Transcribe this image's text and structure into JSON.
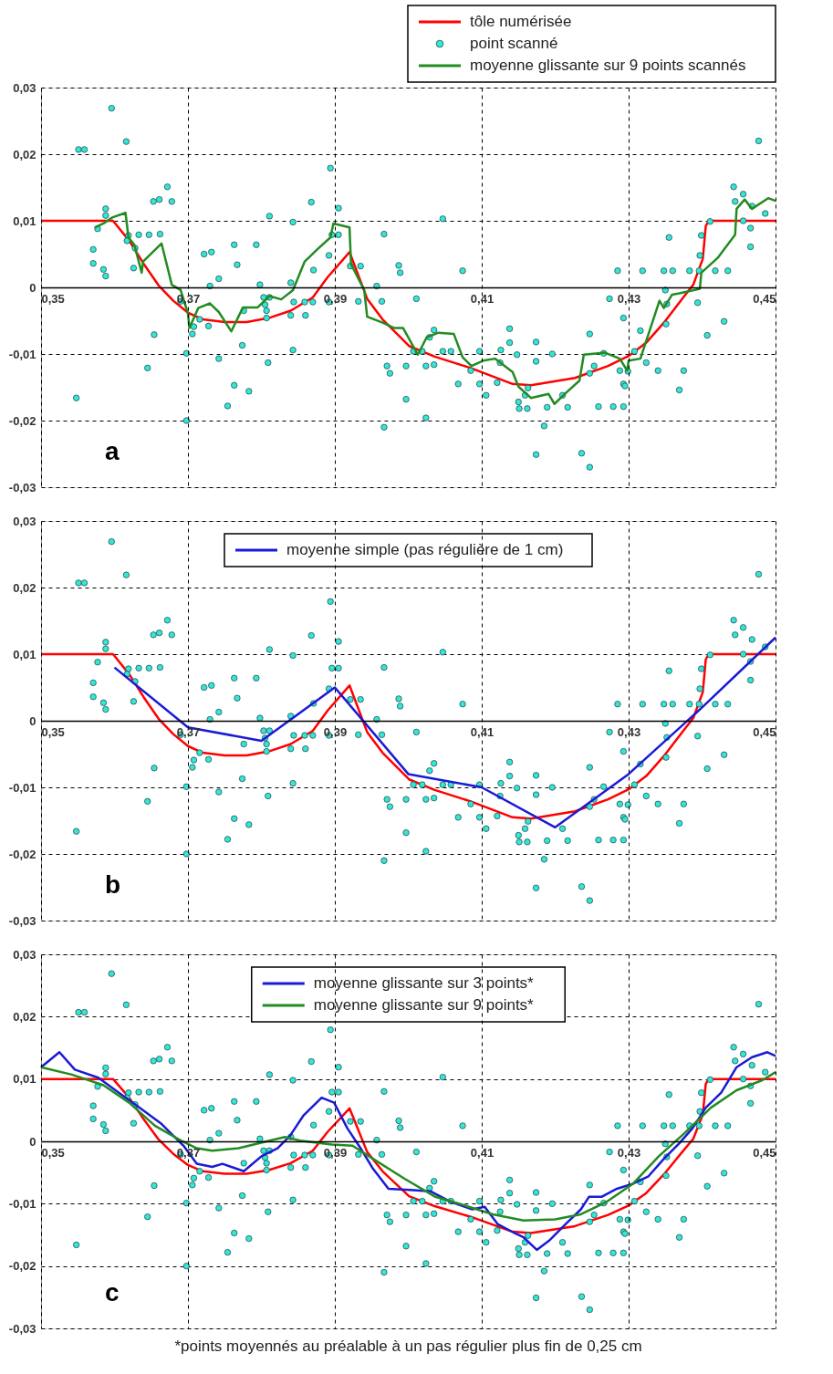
{
  "chart_data": [
    {
      "type": "line",
      "xlim": [
        0.35,
        0.45
      ],
      "ylim": [
        -0.03,
        0.03
      ],
      "grid": true,
      "legend": "top right",
      "line_style": "solid",
      "xticks": [
        {
          "value": 0.35,
          "label": "0,35"
        },
        {
          "value": 0.37,
          "label": "0,37"
        },
        {
          "value": 0.39,
          "label": "0,39"
        },
        {
          "value": 0.41,
          "label": "0,41"
        },
        {
          "value": 0.43,
          "label": "0,43"
        },
        {
          "value": 0.45,
          "label": "0,45"
        }
      ],
      "yticks": [
        {
          "value": 0.03,
          "label": "0,03"
        },
        {
          "value": 0.02,
          "label": "0,02"
        },
        {
          "value": 0.01,
          "label": "0,01"
        },
        {
          "value": 0,
          "label": "0"
        },
        {
          "value": -0.01,
          "label": "-0,01"
        },
        {
          "value": -0.02,
          "label": "-0,02"
        },
        {
          "value": -0.03,
          "label": "-0,03"
        }
      ],
      "annotations": [
        "a"
      ],
      "series": [
        {
          "name": "tôle numérisée",
          "type": "line",
          "color": "#ff0000",
          "x": [
            0.35,
            0.3598,
            0.362,
            0.364,
            0.366,
            0.368,
            0.37,
            0.372,
            0.375,
            0.378,
            0.381,
            0.384,
            0.387,
            0.389,
            0.392,
            0.3944,
            0.3965,
            0.4001,
            0.4036,
            0.4085,
            0.4142,
            0.4167,
            0.4227,
            0.4272,
            0.43,
            0.4324,
            0.4348,
            0.4373,
            0.4388,
            0.4401,
            0.4405,
            0.4409,
            0.45
          ],
          "values": [
            0.01,
            0.01,
            0.007,
            0.0035,
            0.0003,
            -0.002,
            -0.0038,
            -0.0048,
            -0.0052,
            -0.0052,
            -0.0046,
            -0.0035,
            -0.0015,
            0.0015,
            0.0053,
            -0.0017,
            -0.0048,
            -0.0088,
            -0.0104,
            -0.0121,
            -0.0145,
            -0.0147,
            -0.0136,
            -0.0118,
            -0.0103,
            -0.0083,
            -0.0053,
            -0.0017,
            0.0004,
            0.0043,
            0.0092,
            0.01,
            0.01
          ]
        },
        {
          "name": "point scanné",
          "type": "scatter",
          "marker": "circle",
          "color": "#33e6d6",
          "x": [
            0.3596,
            0.3551,
            0.3559,
            0.3616,
            0.3672,
            0.3653,
            0.3661,
            0.3678,
            0.3588,
            0.3588,
            0.3577,
            0.3619,
            0.3633,
            0.3647,
            0.3662,
            0.3571,
            0.3571,
            0.3585,
            0.3588,
            0.3617,
            0.3628,
            0.3626,
            0.369,
            0.3708,
            0.3716,
            0.3706,
            0.3728,
            0.3654,
            0.3645,
            0.3698,
            0.3742,
            0.3548,
            0.3698,
            0.3763,
            0.3783,
            0.3754,
            0.3774,
            0.3809,
            0.3722,
            0.3732,
            0.3763,
            0.3793,
            0.3767,
            0.3742,
            0.373,
            0.3798,
            0.3811,
            0.3776,
            0.3803,
            0.3805,
            0.3807,
            0.3807,
            0.3811,
            0.3894,
            0.3868,
            0.3905,
            0.3843,
            0.4047,
            0.3896,
            0.3905,
            0.3967,
            0.3892,
            0.3871,
            0.3921,
            0.3935,
            0.3987,
            0.3989,
            0.4074,
            0.384,
            0.3957,
            0.4011,
            0.3844,
            0.3859,
            0.387,
            0.3892,
            0.3932,
            0.3964,
            0.384,
            0.386,
            0.3843,
            0.4035,
            0.4029,
            0.4007,
            0.4019,
            0.4047,
            0.4058,
            0.3971,
            0.3975,
            0.3997,
            0.4024,
            0.4035,
            0.3997,
            0.4024,
            0.3967,
            0.4068,
            0.4085,
            0.4097,
            0.4106,
            0.4121,
            0.4126,
            0.4125,
            0.4138,
            0.4138,
            0.4148,
            0.4174,
            0.4174,
            0.415,
            0.4151,
            0.4162,
            0.4159,
            0.4163,
            0.4174,
            0.4097,
            0.4477,
            0.4443,
            0.4456,
            0.4445,
            0.4468,
            0.4486,
            0.4456,
            0.4466,
            0.4466,
            0.4411,
            0.4355,
            0.4399,
            0.4397,
            0.4285,
            0.4319,
            0.4348,
            0.436,
            0.4383,
            0.4396,
            0.4418,
            0.4435,
            0.435,
            0.4274,
            0.4352,
            0.4394,
            0.4293,
            0.443,
            0.4351,
            0.4316,
            0.4407,
            0.4247,
            0.4196,
            0.4266,
            0.4308,
            0.4324,
            0.434,
            0.4375,
            0.4247,
            0.4253,
            0.4288,
            0.4299,
            0.4293,
            0.4295,
            0.4369,
            0.421,
            0.4189,
            0.4217,
            0.4259,
            0.4279,
            0.4293,
            0.4185,
            0.4236,
            0.4247
          ],
          "values": [
            0.0269,
            0.0207,
            0.0207,
            0.0219,
            0.0151,
            0.0129,
            0.0132,
            0.0129,
            0.0118,
            0.0108,
            0.0088,
            0.0078,
            0.0079,
            0.0079,
            0.008,
            0.0057,
            0.0036,
            0.0027,
            0.0017,
            0.007,
            0.0059,
            0.0029,
            -0.0021,
            -0.0059,
            -0.0048,
            -0.007,
            -0.0058,
            -0.0071,
            -0.0121,
            -0.0099,
            -0.0107,
            -0.0166,
            -0.02,
            -0.0147,
            -0.0156,
            -0.0178,
            -0.0087,
            -0.0113,
            0.005,
            0.0053,
            0.0064,
            0.0064,
            0.0034,
            0.0013,
            0.0002,
            0.0004,
            0.0107,
            -0.0035,
            -0.0015,
            -0.0026,
            -0.0035,
            -0.0046,
            -0.0015,
            0.0179,
            0.0128,
            0.0119,
            0.0098,
            0.0103,
            0.0079,
            0.0079,
            0.008,
            0.0048,
            0.0026,
            0.0032,
            0.0032,
            0.0033,
            0.0022,
            0.0025,
            0.0007,
            0.0002,
            -0.0017,
            -0.0022,
            -0.0022,
            -0.0022,
            -0.0022,
            -0.0021,
            -0.0021,
            -0.0042,
            -0.0042,
            -0.0094,
            -0.0064,
            -0.0075,
            -0.0096,
            -0.0096,
            -0.0096,
            -0.0096,
            -0.0118,
            -0.0129,
            -0.0118,
            -0.0118,
            -0.0116,
            -0.0168,
            -0.0196,
            -0.021,
            -0.0145,
            -0.0125,
            -0.0145,
            -0.0162,
            -0.0143,
            -0.0094,
            -0.0113,
            -0.0062,
            -0.0083,
            -0.0101,
            -0.0082,
            -0.0111,
            -0.0172,
            -0.0182,
            -0.0182,
            -0.0162,
            -0.0151,
            -0.0251,
            -0.0096,
            0.022,
            0.0151,
            0.014,
            0.0129,
            0.0122,
            0.0111,
            0.01,
            0.0089,
            0.0061,
            0.0099,
            0.0075,
            0.0078,
            0.0048,
            0.0025,
            0.0025,
            0.0025,
            0.0025,
            0.0025,
            0.0025,
            0.0025,
            0.0025,
            -0.0004,
            -0.0017,
            -0.0025,
            -0.0023,
            -0.0046,
            -0.0051,
            -0.0055,
            -0.0065,
            -0.0072,
            -0.007,
            -0.01,
            -0.0099,
            -0.0096,
            -0.0113,
            -0.0125,
            -0.0125,
            -0.0129,
            -0.0118,
            -0.0125,
            -0.0126,
            -0.0145,
            -0.0148,
            -0.0154,
            -0.0162,
            -0.018,
            -0.018,
            -0.0179,
            -0.0179,
            -0.0179,
            -0.0208,
            -0.0249,
            -0.027
          ]
        },
        {
          "name": "moyenne glissante sur 9 points scannés",
          "type": "line",
          "color": "#228b22",
          "x": [
            0.3573,
            0.3585,
            0.3597,
            0.3615,
            0.3619,
            0.3627,
            0.3637,
            0.3639,
            0.3664,
            0.3678,
            0.369,
            0.37,
            0.3702,
            0.3714,
            0.373,
            0.3742,
            0.3759,
            0.3775,
            0.3795,
            0.3811,
            0.3827,
            0.3843,
            0.3859,
            0.3876,
            0.3894,
            0.3898,
            0.392,
            0.3922,
            0.394,
            0.3944,
            0.3965,
            0.3981,
            0.3993,
            0.4013,
            0.4025,
            0.4041,
            0.4062,
            0.4074,
            0.4086,
            0.4102,
            0.4118,
            0.4142,
            0.415,
            0.4167,
            0.4191,
            0.4199,
            0.4215,
            0.4233,
            0.4239,
            0.4268,
            0.4288,
            0.4298,
            0.43,
            0.4316,
            0.4342,
            0.4348,
            0.4359,
            0.4369,
            0.4397,
            0.4399,
            0.4421,
            0.4445,
            0.4447,
            0.4458,
            0.4468,
            0.449,
            0.45
          ],
          "values": [
            0.009,
            0.0096,
            0.0105,
            0.0112,
            0.0075,
            0.0064,
            0.0022,
            0.0039,
            0.0066,
            0.0004,
            -0.0004,
            -0.0039,
            -0.0061,
            -0.0031,
            -0.0024,
            -0.0037,
            -0.0066,
            -0.003,
            -0.003,
            -0.0013,
            -0.0018,
            -0.0004,
            0.0039,
            0.0057,
            0.0075,
            0.0096,
            0.009,
            0.0035,
            -0.0004,
            -0.0044,
            -0.0053,
            -0.0061,
            -0.0061,
            -0.0101,
            -0.0075,
            -0.0068,
            -0.007,
            -0.0105,
            -0.0118,
            -0.011,
            -0.0107,
            -0.0127,
            -0.0149,
            -0.0166,
            -0.016,
            -0.0175,
            -0.0158,
            -0.014,
            -0.0101,
            -0.0098,
            -0.0107,
            -0.0125,
            -0.011,
            -0.0107,
            -0.002,
            -0.0031,
            -0.0011,
            -0.0009,
            -0.0002,
            0.0022,
            0.0044,
            0.0079,
            0.0118,
            0.0132,
            0.0118,
            0.0134,
            0.013
          ]
        }
      ]
    },
    {
      "type": "line",
      "xlim": [
        0.35,
        0.45
      ],
      "ylim": [
        -0.03,
        0.03
      ],
      "grid": true,
      "legend": "top",
      "line_style": "solid",
      "xticks": [
        {
          "value": 0.35,
          "label": "0,35"
        },
        {
          "value": 0.37,
          "label": "0,37"
        },
        {
          "value": 0.39,
          "label": "0,39"
        },
        {
          "value": 0.41,
          "label": "0,41"
        },
        {
          "value": 0.43,
          "label": "0,43"
        },
        {
          "value": 0.45,
          "label": "0,45"
        }
      ],
      "yticks": [
        {
          "value": 0.03,
          "label": "0,03"
        },
        {
          "value": 0.02,
          "label": "0,02"
        },
        {
          "value": 0.01,
          "label": "0,01"
        },
        {
          "value": 0,
          "label": "0"
        },
        {
          "value": -0.01,
          "label": "-0,01"
        },
        {
          "value": -0.02,
          "label": "-0,02"
        },
        {
          "value": -0.03,
          "label": "-0,03"
        }
      ],
      "annotations": [
        "b"
      ],
      "series": [
        {
          "type": "line",
          "color": "#ff0000",
          "x": [
            0.35,
            0.3598,
            0.362,
            0.364,
            0.366,
            0.368,
            0.37,
            0.372,
            0.375,
            0.378,
            0.381,
            0.384,
            0.387,
            0.389,
            0.392,
            0.3944,
            0.3965,
            0.4001,
            0.4036,
            0.4085,
            0.4142,
            0.4167,
            0.4227,
            0.4272,
            0.43,
            0.4324,
            0.4348,
            0.4373,
            0.4388,
            0.4401,
            0.4405,
            0.4409,
            0.45
          ],
          "values": [
            0.01,
            0.01,
            0.007,
            0.0035,
            0.0003,
            -0.002,
            -0.0038,
            -0.0048,
            -0.0052,
            -0.0052,
            -0.0046,
            -0.0035,
            -0.0015,
            0.0015,
            0.0053,
            -0.0017,
            -0.0048,
            -0.0088,
            -0.0104,
            -0.0121,
            -0.0145,
            -0.0147,
            -0.0136,
            -0.0118,
            -0.0103,
            -0.0083,
            -0.0053,
            -0.0017,
            0.0004,
            0.0043,
            0.0092,
            0.01,
            0.01
          ]
        },
        {
          "type": "scatter",
          "marker": "circle",
          "color": "#33e6d6",
          "x": [
            0.3596,
            0.3551,
            0.3559,
            0.3616,
            0.3672,
            0.3653,
            0.3661,
            0.3678,
            0.3588,
            0.3588,
            0.3577,
            0.3619,
            0.3633,
            0.3647,
            0.3662,
            0.3571,
            0.3571,
            0.3585,
            0.3588,
            0.3617,
            0.3628,
            0.3626,
            0.369,
            0.3708,
            0.3716,
            0.3706,
            0.3728,
            0.3654,
            0.3645,
            0.3698,
            0.3742,
            0.3548,
            0.3698,
            0.3763,
            0.3783,
            0.3754,
            0.3774,
            0.3809,
            0.3722,
            0.3732,
            0.3763,
            0.3793,
            0.3767,
            0.3742,
            0.373,
            0.3798,
            0.3811,
            0.3776,
            0.3803,
            0.3805,
            0.3807,
            0.3807,
            0.3811,
            0.3894,
            0.3868,
            0.3905,
            0.3843,
            0.4047,
            0.3896,
            0.3905,
            0.3967,
            0.3892,
            0.3871,
            0.3921,
            0.3935,
            0.3987,
            0.3989,
            0.4074,
            0.384,
            0.3957,
            0.4011,
            0.3844,
            0.3859,
            0.387,
            0.3892,
            0.3932,
            0.3964,
            0.384,
            0.386,
            0.3843,
            0.4035,
            0.4029,
            0.4007,
            0.4019,
            0.4047,
            0.4058,
            0.3971,
            0.3975,
            0.3997,
            0.4024,
            0.4035,
            0.3997,
            0.4024,
            0.3967,
            0.4068,
            0.4085,
            0.4097,
            0.4106,
            0.4121,
            0.4126,
            0.4125,
            0.4138,
            0.4138,
            0.4148,
            0.4174,
            0.4174,
            0.415,
            0.4151,
            0.4162,
            0.4159,
            0.4163,
            0.4174,
            0.4097,
            0.4477,
            0.4443,
            0.4456,
            0.4445,
            0.4468,
            0.4486,
            0.4456,
            0.4466,
            0.4466,
            0.4411,
            0.4355,
            0.4399,
            0.4397,
            0.4285,
            0.4319,
            0.4348,
            0.436,
            0.4383,
            0.4396,
            0.4418,
            0.4435,
            0.435,
            0.4274,
            0.4352,
            0.4394,
            0.4293,
            0.443,
            0.4351,
            0.4316,
            0.4407,
            0.4247,
            0.4196,
            0.4266,
            0.4308,
            0.4324,
            0.434,
            0.4375,
            0.4247,
            0.4253,
            0.4288,
            0.4299,
            0.4293,
            0.4295,
            0.4369,
            0.421,
            0.4189,
            0.4217,
            0.4259,
            0.4279,
            0.4293,
            0.4185,
            0.4236,
            0.4247
          ],
          "values": [
            0.0269,
            0.0207,
            0.0207,
            0.0219,
            0.0151,
            0.0129,
            0.0132,
            0.0129,
            0.0118,
            0.0108,
            0.0088,
            0.0078,
            0.0079,
            0.0079,
            0.008,
            0.0057,
            0.0036,
            0.0027,
            0.0017,
            0.007,
            0.0059,
            0.0029,
            -0.0021,
            -0.0059,
            -0.0048,
            -0.007,
            -0.0058,
            -0.0071,
            -0.0121,
            -0.0099,
            -0.0107,
            -0.0166,
            -0.02,
            -0.0147,
            -0.0156,
            -0.0178,
            -0.0087,
            -0.0113,
            0.005,
            0.0053,
            0.0064,
            0.0064,
            0.0034,
            0.0013,
            0.0002,
            0.0004,
            0.0107,
            -0.0035,
            -0.0015,
            -0.0026,
            -0.0035,
            -0.0046,
            -0.0015,
            0.0179,
            0.0128,
            0.0119,
            0.0098,
            0.0103,
            0.0079,
            0.0079,
            0.008,
            0.0048,
            0.0026,
            0.0032,
            0.0032,
            0.0033,
            0.0022,
            0.0025,
            0.0007,
            0.0002,
            -0.0017,
            -0.0022,
            -0.0022,
            -0.0022,
            -0.0022,
            -0.0021,
            -0.0021,
            -0.0042,
            -0.0042,
            -0.0094,
            -0.0064,
            -0.0075,
            -0.0096,
            -0.0096,
            -0.0096,
            -0.0096,
            -0.0118,
            -0.0129,
            -0.0118,
            -0.0118,
            -0.0116,
            -0.0168,
            -0.0196,
            -0.021,
            -0.0145,
            -0.0125,
            -0.0145,
            -0.0162,
            -0.0143,
            -0.0094,
            -0.0113,
            -0.0062,
            -0.0083,
            -0.0101,
            -0.0082,
            -0.0111,
            -0.0172,
            -0.0182,
            -0.0182,
            -0.0162,
            -0.0151,
            -0.0251,
            -0.0096,
            0.022,
            0.0151,
            0.014,
            0.0129,
            0.0122,
            0.0111,
            0.01,
            0.0089,
            0.0061,
            0.0099,
            0.0075,
            0.0078,
            0.0048,
            0.0025,
            0.0025,
            0.0025,
            0.0025,
            0.0025,
            0.0025,
            0.0025,
            0.0025,
            -0.0004,
            -0.0017,
            -0.0025,
            -0.0023,
            -0.0046,
            -0.0051,
            -0.0055,
            -0.0065,
            -0.0072,
            -0.007,
            -0.01,
            -0.0099,
            -0.0096,
            -0.0113,
            -0.0125,
            -0.0125,
            -0.0129,
            -0.0118,
            -0.0125,
            -0.0126,
            -0.0145,
            -0.0148,
            -0.0154,
            -0.0162,
            -0.018,
            -0.018,
            -0.0179,
            -0.0179,
            -0.0179,
            -0.0208,
            -0.0249,
            -0.027
          ]
        },
        {
          "name": "moyenne simple (pas régulière de 1 cm)",
          "type": "line",
          "color": "#1a1ad6",
          "x": [
            0.36,
            0.37,
            0.38,
            0.39,
            0.4,
            0.41,
            0.42,
            0.43,
            0.44,
            0.45
          ],
          "values": [
            0.008,
            -0.001,
            -0.003,
            0.005,
            -0.008,
            -0.01,
            -0.016,
            -0.008,
            0.002,
            0.0125
          ]
        }
      ]
    },
    {
      "type": "line",
      "xlim": [
        0.35,
        0.45
      ],
      "ylim": [
        -0.03,
        0.03
      ],
      "grid": true,
      "legend": "top",
      "line_style": "solid",
      "xticks": [
        {
          "value": 0.35,
          "label": "0,35"
        },
        {
          "value": 0.37,
          "label": "0,37"
        },
        {
          "value": 0.39,
          "label": "0,39"
        },
        {
          "value": 0.41,
          "label": "0,41"
        },
        {
          "value": 0.43,
          "label": "0,43"
        },
        {
          "value": 0.45,
          "label": "0,45"
        }
      ],
      "yticks": [
        {
          "value": 0.03,
          "label": "0,03"
        },
        {
          "value": 0.02,
          "label": "0,02"
        },
        {
          "value": 0.01,
          "label": "0,01"
        },
        {
          "value": 0,
          "label": "0"
        },
        {
          "value": -0.01,
          "label": "-0,01"
        },
        {
          "value": -0.02,
          "label": "-0,02"
        },
        {
          "value": -0.03,
          "label": "-0,03"
        }
      ],
      "annotations": [
        "c",
        "*points moyennés au préalable à un pas régulier plus fin de 0,25 cm"
      ],
      "series": [
        {
          "type": "line",
          "color": "#ff0000",
          "x": [
            0.35,
            0.3598,
            0.362,
            0.364,
            0.366,
            0.368,
            0.37,
            0.372,
            0.375,
            0.378,
            0.381,
            0.384,
            0.387,
            0.389,
            0.392,
            0.3944,
            0.3965,
            0.4001,
            0.4036,
            0.4085,
            0.4142,
            0.4167,
            0.4227,
            0.4272,
            0.43,
            0.4324,
            0.4348,
            0.4373,
            0.4388,
            0.4401,
            0.4405,
            0.4409,
            0.45
          ],
          "values": [
            0.01,
            0.01,
            0.007,
            0.0035,
            0.0003,
            -0.002,
            -0.0038,
            -0.0048,
            -0.0052,
            -0.0052,
            -0.0046,
            -0.0035,
            -0.0015,
            0.0015,
            0.0053,
            -0.0017,
            -0.0048,
            -0.0088,
            -0.0104,
            -0.0121,
            -0.0145,
            -0.0147,
            -0.0136,
            -0.0118,
            -0.0103,
            -0.0083,
            -0.0053,
            -0.0017,
            0.0004,
            0.0043,
            0.0092,
            0.01,
            0.01
          ]
        },
        {
          "type": "scatter",
          "marker": "circle",
          "color": "#33e6d6",
          "x": [
            0.3596,
            0.3551,
            0.3559,
            0.3616,
            0.3672,
            0.3653,
            0.3661,
            0.3678,
            0.3588,
            0.3588,
            0.3577,
            0.3619,
            0.3633,
            0.3647,
            0.3662,
            0.3571,
            0.3571,
            0.3585,
            0.3588,
            0.3617,
            0.3628,
            0.3626,
            0.369,
            0.3708,
            0.3716,
            0.3706,
            0.3728,
            0.3654,
            0.3645,
            0.3698,
            0.3742,
            0.3548,
            0.3698,
            0.3763,
            0.3783,
            0.3754,
            0.3774,
            0.3809,
            0.3722,
            0.3732,
            0.3763,
            0.3793,
            0.3767,
            0.3742,
            0.373,
            0.3798,
            0.3811,
            0.3776,
            0.3803,
            0.3805,
            0.3807,
            0.3807,
            0.3811,
            0.3894,
            0.3868,
            0.3905,
            0.3843,
            0.4047,
            0.3896,
            0.3905,
            0.3967,
            0.3892,
            0.3871,
            0.3921,
            0.3935,
            0.3987,
            0.3989,
            0.4074,
            0.384,
            0.3957,
            0.4011,
            0.3844,
            0.3859,
            0.387,
            0.3892,
            0.3932,
            0.3964,
            0.384,
            0.386,
            0.3843,
            0.4035,
            0.4029,
            0.4007,
            0.4019,
            0.4047,
            0.4058,
            0.3971,
            0.3975,
            0.3997,
            0.4024,
            0.4035,
            0.3997,
            0.4024,
            0.3967,
            0.4068,
            0.4085,
            0.4097,
            0.4106,
            0.4121,
            0.4126,
            0.4125,
            0.4138,
            0.4138,
            0.4148,
            0.4174,
            0.4174,
            0.415,
            0.4151,
            0.4162,
            0.4159,
            0.4163,
            0.4174,
            0.4097,
            0.4477,
            0.4443,
            0.4456,
            0.4445,
            0.4468,
            0.4486,
            0.4456,
            0.4466,
            0.4466,
            0.4411,
            0.4355,
            0.4399,
            0.4397,
            0.4285,
            0.4319,
            0.4348,
            0.436,
            0.4383,
            0.4396,
            0.4418,
            0.4435,
            0.435,
            0.4274,
            0.4352,
            0.4394,
            0.4293,
            0.443,
            0.4351,
            0.4316,
            0.4407,
            0.4247,
            0.4196,
            0.4266,
            0.4308,
            0.4324,
            0.434,
            0.4375,
            0.4247,
            0.4253,
            0.4288,
            0.4299,
            0.4293,
            0.4295,
            0.4369,
            0.421,
            0.4189,
            0.4217,
            0.4259,
            0.4279,
            0.4293,
            0.4185,
            0.4236,
            0.4247
          ],
          "values": [
            0.0269,
            0.0207,
            0.0207,
            0.0219,
            0.0151,
            0.0129,
            0.0132,
            0.0129,
            0.0118,
            0.0108,
            0.0088,
            0.0078,
            0.0079,
            0.0079,
            0.008,
            0.0057,
            0.0036,
            0.0027,
            0.0017,
            0.007,
            0.0059,
            0.0029,
            -0.0021,
            -0.0059,
            -0.0048,
            -0.007,
            -0.0058,
            -0.0071,
            -0.0121,
            -0.0099,
            -0.0107,
            -0.0166,
            -0.02,
            -0.0147,
            -0.0156,
            -0.0178,
            -0.0087,
            -0.0113,
            0.005,
            0.0053,
            0.0064,
            0.0064,
            0.0034,
            0.0013,
            0.0002,
            0.0004,
            0.0107,
            -0.0035,
            -0.0015,
            -0.0026,
            -0.0035,
            -0.0046,
            -0.0015,
            0.0179,
            0.0128,
            0.0119,
            0.0098,
            0.0103,
            0.0079,
            0.0079,
            0.008,
            0.0048,
            0.0026,
            0.0032,
            0.0032,
            0.0033,
            0.0022,
            0.0025,
            0.0007,
            0.0002,
            -0.0017,
            -0.0022,
            -0.0022,
            -0.0022,
            -0.0022,
            -0.0021,
            -0.0021,
            -0.0042,
            -0.0042,
            -0.0094,
            -0.0064,
            -0.0075,
            -0.0096,
            -0.0096,
            -0.0096,
            -0.0096,
            -0.0118,
            -0.0129,
            -0.0118,
            -0.0118,
            -0.0116,
            -0.0168,
            -0.0196,
            -0.021,
            -0.0145,
            -0.0125,
            -0.0145,
            -0.0162,
            -0.0143,
            -0.0094,
            -0.0113,
            -0.0062,
            -0.0083,
            -0.0101,
            -0.0082,
            -0.0111,
            -0.0172,
            -0.0182,
            -0.0182,
            -0.0162,
            -0.0151,
            -0.0251,
            -0.0096,
            0.022,
            0.0151,
            0.014,
            0.0129,
            0.0122,
            0.0111,
            0.01,
            0.0089,
            0.0061,
            0.0099,
            0.0075,
            0.0078,
            0.0048,
            0.0025,
            0.0025,
            0.0025,
            0.0025,
            0.0025,
            0.0025,
            0.0025,
            0.0025,
            -0.0004,
            -0.0017,
            -0.0025,
            -0.0023,
            -0.0046,
            -0.0051,
            -0.0055,
            -0.0065,
            -0.0072,
            -0.007,
            -0.01,
            -0.0099,
            -0.0096,
            -0.0113,
            -0.0125,
            -0.0125,
            -0.0129,
            -0.0118,
            -0.0125,
            -0.0126,
            -0.0145,
            -0.0148,
            -0.0154,
            -0.0162,
            -0.018,
            -0.018,
            -0.0179,
            -0.0179,
            -0.0179,
            -0.0208,
            -0.0249,
            -0.027
          ]
        },
        {
          "name": "moyenne glissante sur 3 points*",
          "type": "line",
          "color": "#1a1ad6",
          "x": [
            0.35,
            0.3525,
            0.3546,
            0.3578,
            0.3606,
            0.3634,
            0.3663,
            0.3694,
            0.3712,
            0.3733,
            0.3747,
            0.3776,
            0.38,
            0.3822,
            0.3839,
            0.3857,
            0.3882,
            0.3899,
            0.3917,
            0.3935,
            0.3952,
            0.3973,
            0.4002,
            0.403,
            0.4058,
            0.4087,
            0.4104,
            0.4122,
            0.4143,
            0.4157,
            0.4175,
            0.4193,
            0.4214,
            0.4235,
            0.4246,
            0.4263,
            0.4284,
            0.4306,
            0.4327,
            0.4348,
            0.4369,
            0.4387,
            0.4405,
            0.4426,
            0.4447,
            0.4468,
            0.4489,
            0.45
          ],
          "values": [
            0.0119,
            0.0143,
            0.0115,
            0.0102,
            0.0078,
            0.0054,
            0.0029,
            -0.0007,
            -0.0036,
            -0.0041,
            -0.0036,
            -0.0048,
            -0.0024,
            -0.0011,
            0.0009,
            0.0041,
            0.007,
            0.0062,
            0.0021,
            -0.0011,
            -0.0044,
            -0.0076,
            -0.0078,
            -0.008,
            -0.0097,
            -0.0109,
            -0.0105,
            -0.0133,
            -0.0146,
            -0.0154,
            -0.0174,
            -0.0158,
            -0.0133,
            -0.0109,
            -0.0089,
            -0.0089,
            -0.0076,
            -0.0068,
            -0.0056,
            -0.0028,
            -0.0003,
            0.0021,
            0.0054,
            0.0078,
            0.0119,
            0.0135,
            0.0143,
            0.0137
          ]
        },
        {
          "name": "moyenne glissante sur 9 points*",
          "type": "line",
          "color": "#228b22",
          "x": [
            0.35,
            0.3542,
            0.3585,
            0.362,
            0.3655,
            0.3691,
            0.3712,
            0.3733,
            0.3769,
            0.3811,
            0.3832,
            0.3853,
            0.3896,
            0.3924,
            0.3952,
            0.3995,
            0.4037,
            0.4072,
            0.4115,
            0.4157,
            0.42,
            0.4235,
            0.427,
            0.4306,
            0.4341,
            0.4376,
            0.4412,
            0.4447,
            0.4482,
            0.45
          ],
          "values": [
            0.0119,
            0.0107,
            0.009,
            0.0062,
            0.0025,
            0.0001,
            -0.0011,
            -0.0015,
            -0.0011,
            0.0001,
            0.0007,
            0.0001,
            -0.0005,
            -0.0007,
            -0.0028,
            -0.006,
            -0.0089,
            -0.0101,
            -0.0117,
            -0.0127,
            -0.0125,
            -0.0117,
            -0.0097,
            -0.0068,
            -0.0024,
            0.0013,
            0.0054,
            0.0082,
            0.0098,
            0.0111
          ]
        }
      ]
    }
  ]
}
